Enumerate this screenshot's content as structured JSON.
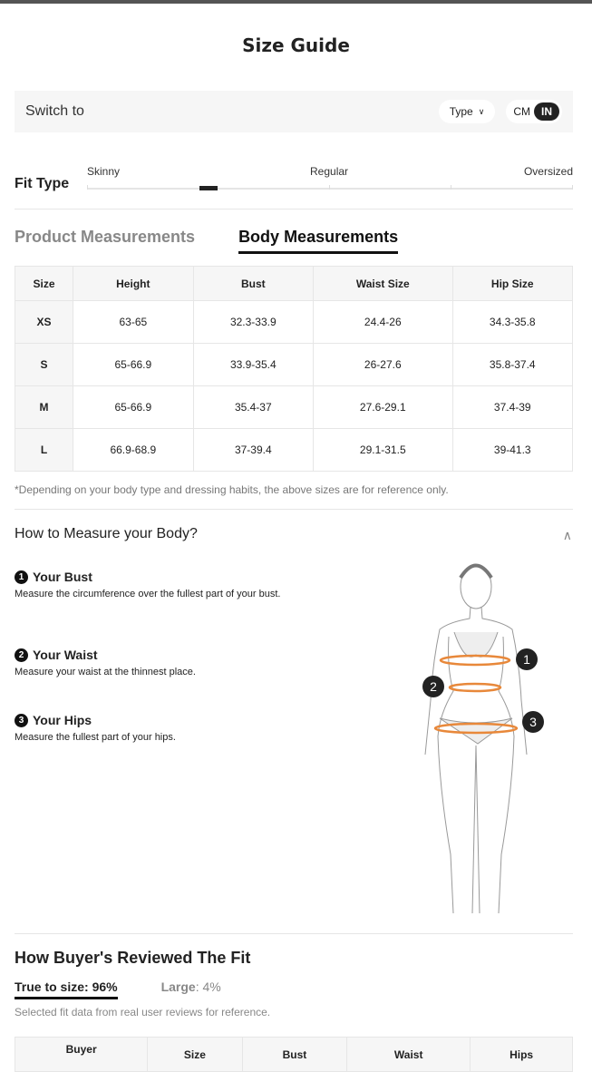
{
  "title": "Size Guide",
  "switch": {
    "label": "Switch to",
    "type": "Type",
    "units": [
      "CM",
      "IN"
    ],
    "selected_unit": "IN"
  },
  "fit": {
    "label": "Fit Type",
    "scale": [
      "Skinny",
      "Regular",
      "Oversized"
    ],
    "position": 0.2
  },
  "tabs": [
    {
      "label": "Product Measurements",
      "active": false
    },
    {
      "label": "Body Measurements",
      "active": true
    }
  ],
  "table": {
    "headers": [
      "Size",
      "Height",
      "Bust",
      "Waist Size",
      "Hip Size"
    ],
    "rows": [
      [
        "XS",
        "63-65",
        "32.3-33.9",
        "24.4-26",
        "34.3-35.8"
      ],
      [
        "S",
        "65-66.9",
        "33.9-35.4",
        "26-27.6",
        "35.8-37.4"
      ],
      [
        "M",
        "65-66.9",
        "35.4-37",
        "27.6-29.1",
        "37.4-39"
      ],
      [
        "L",
        "66.9-68.9",
        "37-39.4",
        "29.1-31.5",
        "39-41.3"
      ]
    ]
  },
  "note": "*Depending on your body type and dressing habits, the above sizes are for reference only.",
  "how": {
    "title": "How to Measure your Body?",
    "steps": [
      {
        "num": "1",
        "title": "Your Bust",
        "desc": "Measure the circumference over the fullest part of your bust."
      },
      {
        "num": "2",
        "title": "Your Waist",
        "desc": "Measure your waist at the thinnest place."
      },
      {
        "num": "3",
        "title": "Your Hips",
        "desc": "Measure the fullest part of your hips."
      }
    ]
  },
  "reviews": {
    "title": "How Buyer's Reviewed The Fit",
    "true_label": "True to size: 96%",
    "large_label": "Large",
    "large_value": ": 4%",
    "note": "Selected fit data from real user reviews for reference.",
    "headers": [
      "Buyer",
      "Size",
      "Bust",
      "Waist",
      "Hips"
    ]
  },
  "colors": {
    "accent": "#111111",
    "measure_ring": "#e8883a"
  }
}
